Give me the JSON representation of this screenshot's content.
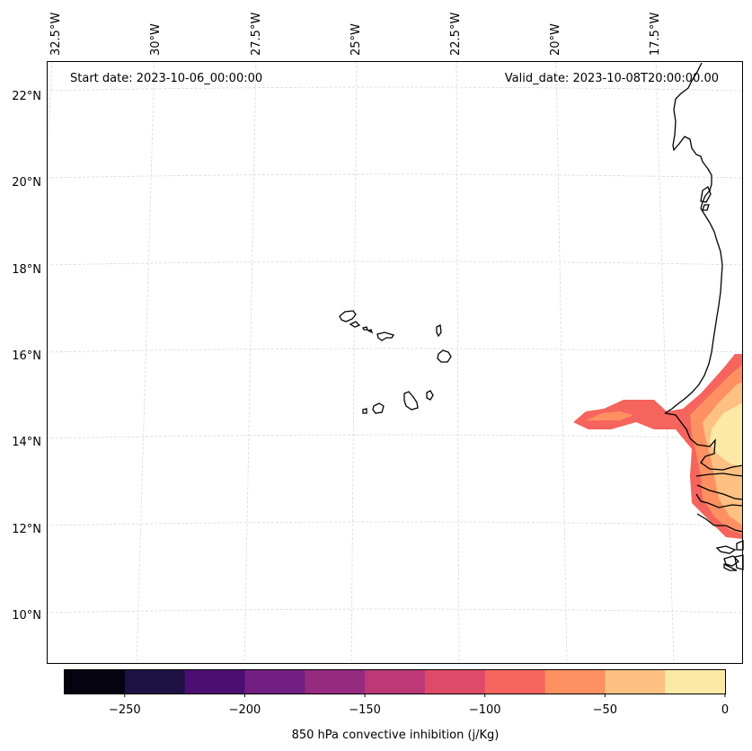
{
  "header": {
    "start_date": "Start date: 2023-10-06_00:00:00",
    "valid_date": "Valid_date: 2023-10-08T20:00:00.00"
  },
  "lon_labels": [
    "32.5°W",
    "30°W",
    "27.5°W",
    "25°W",
    "22.5°W",
    "20°W",
    "17.5°W"
  ],
  "lat_labels": [
    "22°N",
    "20°N",
    "18°N",
    "16°N",
    "14°N",
    "12°N",
    "10°N"
  ],
  "colorbar": {
    "label": "850 hPa convective inhibition (j/Kg)",
    "min": -275,
    "max": 0,
    "tick_values": [
      -250,
      -200,
      -150,
      -100,
      -50,
      0
    ],
    "tick_labels": [
      "−250",
      "−200",
      "−150",
      "−100",
      "−50",
      "0"
    ],
    "colors": [
      "#05030f",
      "#1e1143",
      "#4b0f73",
      "#711f81",
      "#952c80",
      "#bc3877",
      "#df4a68",
      "#f5645d",
      "#fe9061",
      "#fec083",
      "#fde9a6"
    ]
  },
  "map_colors": {
    "ocean": "#ffffff",
    "coastline": "#000000",
    "gridline": "#d9d9d9"
  }
}
